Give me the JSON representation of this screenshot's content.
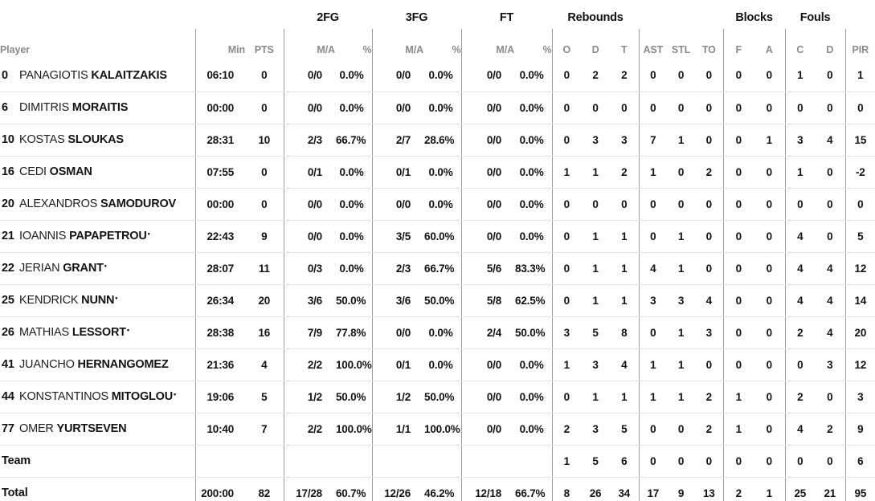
{
  "table": {
    "player_header": "Player",
    "groups": [
      "2FG",
      "3FG",
      "FT",
      "Rebounds",
      "Blocks",
      "Fouls"
    ],
    "columns": [
      "Min",
      "PTS",
      "M/A",
      "%",
      "M/A",
      "%",
      "M/A",
      "%",
      "O",
      "D",
      "T",
      "AST",
      "STL",
      "TO",
      "F",
      "A",
      "C",
      "D",
      "PIR"
    ],
    "starter_mark": "•",
    "colors": {
      "header_text": "#8a8a8a",
      "group_text": "#111111",
      "body_text": "#131313",
      "vertical_line": "#9c9c9c",
      "row_line": "#e7e7e7",
      "background": "#ffffff"
    },
    "rows": [
      {
        "type": "player",
        "number": "0",
        "first": "PANAGIOTIS",
        "last": "KALAITZAKIS",
        "starter": false,
        "stats": [
          "06:10",
          "0",
          "0/0",
          "0.0%",
          "0/0",
          "0.0%",
          "0/0",
          "0.0%",
          "0",
          "2",
          "2",
          "0",
          "0",
          "0",
          "0",
          "0",
          "1",
          "0",
          "1"
        ]
      },
      {
        "type": "player",
        "number": "6",
        "first": "DIMITRIS",
        "last": "MORAITIS",
        "starter": false,
        "stats": [
          "00:00",
          "0",
          "0/0",
          "0.0%",
          "0/0",
          "0.0%",
          "0/0",
          "0.0%",
          "0",
          "0",
          "0",
          "0",
          "0",
          "0",
          "0",
          "0",
          "0",
          "0",
          "0"
        ]
      },
      {
        "type": "player",
        "number": "10",
        "first": "KOSTAS",
        "last": "SLOUKAS",
        "starter": false,
        "stats": [
          "28:31",
          "10",
          "2/3",
          "66.7%",
          "2/7",
          "28.6%",
          "0/0",
          "0.0%",
          "0",
          "3",
          "3",
          "7",
          "1",
          "0",
          "0",
          "1",
          "3",
          "4",
          "15"
        ]
      },
      {
        "type": "player",
        "number": "16",
        "first": "CEDI",
        "last": "OSMAN",
        "starter": false,
        "stats": [
          "07:55",
          "0",
          "0/1",
          "0.0%",
          "0/1",
          "0.0%",
          "0/0",
          "0.0%",
          "1",
          "1",
          "2",
          "1",
          "0",
          "2",
          "0",
          "0",
          "1",
          "0",
          "-2"
        ]
      },
      {
        "type": "player",
        "number": "20",
        "first": "ALEXANDROS",
        "last": "SAMODUROV",
        "starter": false,
        "stats": [
          "00:00",
          "0",
          "0/0",
          "0.0%",
          "0/0",
          "0.0%",
          "0/0",
          "0.0%",
          "0",
          "0",
          "0",
          "0",
          "0",
          "0",
          "0",
          "0",
          "0",
          "0",
          "0"
        ]
      },
      {
        "type": "player",
        "number": "21",
        "first": "IOANNIS",
        "last": "PAPAPETROU",
        "starter": true,
        "stats": [
          "22:43",
          "9",
          "0/0",
          "0.0%",
          "3/5",
          "60.0%",
          "0/0",
          "0.0%",
          "0",
          "1",
          "1",
          "0",
          "1",
          "0",
          "0",
          "0",
          "4",
          "0",
          "5"
        ]
      },
      {
        "type": "player",
        "number": "22",
        "first": "JERIAN",
        "last": "GRANT",
        "starter": true,
        "stats": [
          "28:07",
          "11",
          "0/3",
          "0.0%",
          "2/3",
          "66.7%",
          "5/6",
          "83.3%",
          "0",
          "1",
          "1",
          "4",
          "1",
          "0",
          "0",
          "0",
          "4",
          "4",
          "12"
        ]
      },
      {
        "type": "player",
        "number": "25",
        "first": "KENDRICK",
        "last": "NUNN",
        "starter": true,
        "stats": [
          "26:34",
          "20",
          "3/6",
          "50.0%",
          "3/6",
          "50.0%",
          "5/8",
          "62.5%",
          "0",
          "1",
          "1",
          "3",
          "3",
          "4",
          "0",
          "0",
          "4",
          "4",
          "14"
        ]
      },
      {
        "type": "player",
        "number": "26",
        "first": "MATHIAS",
        "last": "LESSORT",
        "starter": true,
        "stats": [
          "28:38",
          "16",
          "7/9",
          "77.8%",
          "0/0",
          "0.0%",
          "2/4",
          "50.0%",
          "3",
          "5",
          "8",
          "0",
          "1",
          "3",
          "0",
          "0",
          "2",
          "4",
          "20"
        ]
      },
      {
        "type": "player",
        "number": "41",
        "first": "JUANCHO",
        "last": "HERNANGOMEZ",
        "starter": false,
        "stats": [
          "21:36",
          "4",
          "2/2",
          "100.0%",
          "0/1",
          "0.0%",
          "0/0",
          "0.0%",
          "1",
          "3",
          "4",
          "1",
          "1",
          "0",
          "0",
          "0",
          "0",
          "3",
          "12"
        ]
      },
      {
        "type": "player",
        "number": "44",
        "first": "KONSTANTINOS",
        "last": "MITOGLOU",
        "starter": true,
        "stats": [
          "19:06",
          "5",
          "1/2",
          "50.0%",
          "1/2",
          "50.0%",
          "0/0",
          "0.0%",
          "0",
          "1",
          "1",
          "1",
          "1",
          "2",
          "1",
          "0",
          "2",
          "0",
          "3"
        ]
      },
      {
        "type": "player",
        "number": "77",
        "first": "OMER",
        "last": "YURTSEVEN",
        "starter": false,
        "stats": [
          "10:40",
          "7",
          "2/2",
          "100.0%",
          "1/1",
          "100.0%",
          "0/0",
          "0.0%",
          "2",
          "3",
          "5",
          "0",
          "0",
          "2",
          "1",
          "0",
          "4",
          "2",
          "9"
        ]
      },
      {
        "type": "team",
        "label": "Team",
        "stats": [
          "",
          "",
          "",
          "",
          "",
          "",
          "",
          "",
          "1",
          "5",
          "6",
          "0",
          "0",
          "0",
          "0",
          "0",
          "0",
          "0",
          "6"
        ]
      },
      {
        "type": "total",
        "label": "Total",
        "stats": [
          "200:00",
          "82",
          "17/28",
          "60.7%",
          "12/26",
          "46.2%",
          "12/18",
          "66.7%",
          "8",
          "26",
          "34",
          "17",
          "9",
          "13",
          "2",
          "1",
          "25",
          "21",
          "95"
        ]
      }
    ]
  }
}
